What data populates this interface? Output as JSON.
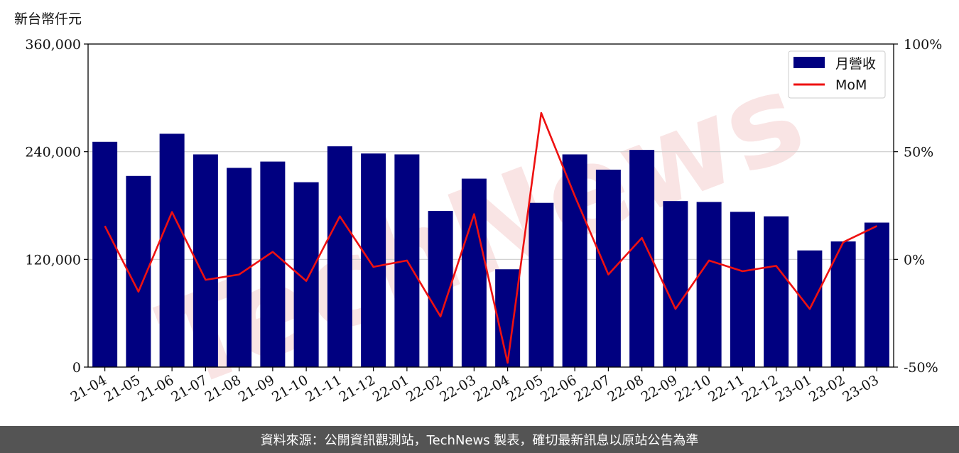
{
  "watermark_text": "TechNews",
  "footer_text": "資料來源：公開資訊觀測站，TechNews 製表，確切最新訊息以原站公告為準",
  "colors": {
    "bar": "#000080",
    "line": "#ee1111",
    "grid": "#cccccc",
    "footer_bg": "#545454"
  },
  "chart_data": {
    "type": "bar",
    "unit_label": "新台幣仟元",
    "categories": [
      "21-04",
      "21-05",
      "21-06",
      "21-07",
      "21-08",
      "21-09",
      "21-10",
      "21-11",
      "21-12",
      "22-01",
      "22-02",
      "22-03",
      "22-04",
      "22-05",
      "22-06",
      "22-07",
      "22-08",
      "22-09",
      "22-10",
      "22-11",
      "22-12",
      "23-01",
      "23-02",
      "23-03"
    ],
    "series": [
      {
        "name": "月營收",
        "axis": "left",
        "kind": "bar",
        "values": [
          251000,
          213000,
          260000,
          237000,
          222000,
          229000,
          206000,
          246000,
          238000,
          237000,
          174000,
          210000,
          109000,
          183000,
          237000,
          220000,
          242000,
          185000,
          184000,
          173000,
          168000,
          130000,
          140000,
          161000
        ]
      },
      {
        "name": "MoM",
        "axis": "right",
        "kind": "line",
        "values": [
          15.5,
          -15,
          22,
          -9.5,
          -7,
          3.5,
          -10,
          20,
          -3.5,
          -0.5,
          -26.5,
          21,
          -48,
          68,
          29.5,
          -7,
          10,
          -23,
          -0.5,
          -5.5,
          -3,
          -23,
          8,
          15.5
        ]
      }
    ],
    "ylim_left": [
      0,
      360000
    ],
    "yticks_left": [
      "0",
      "120,000",
      "240,000",
      "360,000"
    ],
    "yticks_left_values": [
      0,
      120000,
      240000,
      360000
    ],
    "ylim_right": [
      -50,
      100
    ],
    "yticks_right": [
      "-50%",
      "0%",
      "50%",
      "100%"
    ],
    "yticks_right_values": [
      -50,
      0,
      50,
      100
    ],
    "grid": "horizontal",
    "legend_position": "top-right"
  }
}
